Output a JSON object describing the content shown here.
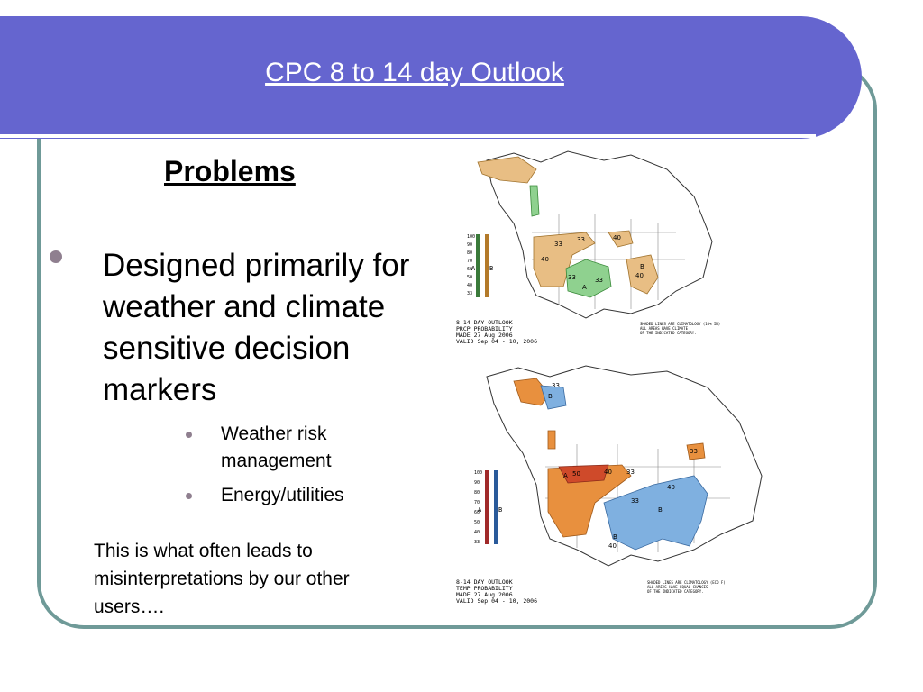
{
  "slide": {
    "title": "CPC 8 to 14 day Outlook",
    "heading": "Problems",
    "bullet_main": "Designed primarily for weather and climate sensitive decision markers",
    "sub_bullets": [
      "Weather risk management",
      "Energy/utilities"
    ],
    "note": "This is what often leads to misinterpretations by our other users…."
  },
  "maps": {
    "precip": {
      "caption": [
        "8-14 DAY OUTLOOK",
        "PRCP PROBABILITY",
        "MADE  27 Aug 2006",
        "VALID  Sep 04 - 10, 2006"
      ],
      "side_note": [
        "SHADED LINES ARE CLIMATOLOGY (10% IN)",
        "ALL AREAS HAVE CLIMATE",
        "OF THE INDICATED CATEGORY."
      ],
      "scale": [
        "100",
        "90",
        "80",
        "70",
        "60",
        "50",
        "40",
        "33"
      ],
      "scale_letters": [
        "A",
        "B"
      ],
      "labels": [
        "33",
        "40",
        "33",
        "40",
        "33",
        "A",
        "33",
        "40",
        "B"
      ],
      "colors": {
        "above": "#8fd18f",
        "below": "#e8be84"
      }
    },
    "temp": {
      "caption": [
        "8-14 DAY OUTLOOK",
        "TEMP PROBABILITY",
        "MADE  27 Aug 2006",
        "VALID  Sep 04 - 10, 2006"
      ],
      "side_note": [
        "SHADED LINES ARE CLIMATOLOGY (ECO F)",
        "ALL AREAS HAVE EQUAL CHANCES",
        "OF THE INDICATED CATEGORY."
      ],
      "scale": [
        "100",
        "90",
        "80",
        "70",
        "60",
        "50",
        "40",
        "33"
      ],
      "scale_letters": [
        "A",
        "B"
      ],
      "labels": [
        "33",
        "B",
        "A",
        "50",
        "40",
        "33",
        "33",
        "B",
        "40",
        "B",
        "40",
        "33"
      ],
      "colors": {
        "above": "#e8903e",
        "above_strong": "#cf4a2a",
        "below": "#7fb0e0"
      }
    }
  },
  "colors": {
    "title_band": "#6565cf",
    "frame": "#6f9a98",
    "bullet": "#8f7f8f"
  }
}
